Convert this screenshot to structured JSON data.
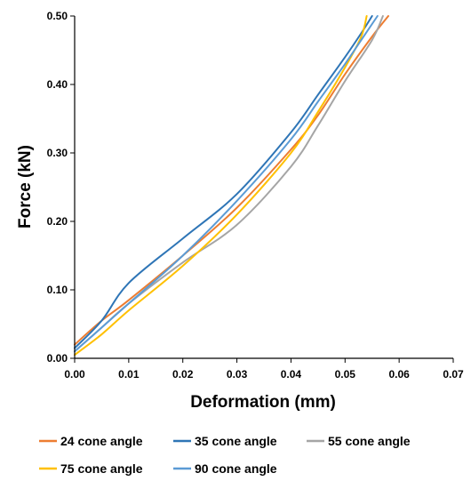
{
  "chart_data": {
    "type": "line",
    "xlabel": "Deformation (mm)",
    "ylabel": "Force (kN)",
    "xlim": [
      0,
      0.07
    ],
    "ylim": [
      0,
      0.5
    ],
    "x_ticks": [
      "0.00",
      "0.01",
      "0.02",
      "0.03",
      "0.04",
      "0.05",
      "0.06",
      "0.07"
    ],
    "y_ticks": [
      "0.00",
      "0.10",
      "0.20",
      "0.30",
      "0.40",
      "0.50"
    ],
    "grid": false,
    "legend_position": "bottom",
    "series": [
      {
        "name": "24 cone angle",
        "color": "#ED7D31",
        "points": [
          [
            0,
            0.02
          ],
          [
            0.005,
            0.055
          ],
          [
            0.01,
            0.085
          ],
          [
            0.02,
            0.15
          ],
          [
            0.03,
            0.22
          ],
          [
            0.04,
            0.305
          ],
          [
            0.045,
            0.355
          ],
          [
            0.05,
            0.415
          ],
          [
            0.055,
            0.47
          ],
          [
            0.058,
            0.5
          ]
        ]
      },
      {
        "name": "35 cone angle",
        "color": "#2E75B6",
        "points": [
          [
            0,
            0.015
          ],
          [
            0.005,
            0.055
          ],
          [
            0.01,
            0.11
          ],
          [
            0.02,
            0.175
          ],
          [
            0.03,
            0.24
          ],
          [
            0.04,
            0.33
          ],
          [
            0.045,
            0.385
          ],
          [
            0.05,
            0.44
          ],
          [
            0.053,
            0.475
          ],
          [
            0.055,
            0.5
          ]
        ]
      },
      {
        "name": "55 cone angle",
        "color": "#A5A5A5",
        "points": [
          [
            0,
            0.01
          ],
          [
            0.005,
            0.045
          ],
          [
            0.01,
            0.08
          ],
          [
            0.02,
            0.14
          ],
          [
            0.03,
            0.195
          ],
          [
            0.04,
            0.28
          ],
          [
            0.045,
            0.34
          ],
          [
            0.05,
            0.405
          ],
          [
            0.055,
            0.465
          ],
          [
            0.057,
            0.5
          ]
        ]
      },
      {
        "name": "75 cone angle",
        "color": "#FFC000",
        "points": [
          [
            0,
            0.005
          ],
          [
            0.005,
            0.035
          ],
          [
            0.01,
            0.07
          ],
          [
            0.02,
            0.135
          ],
          [
            0.03,
            0.21
          ],
          [
            0.04,
            0.3
          ],
          [
            0.045,
            0.36
          ],
          [
            0.05,
            0.425
          ],
          [
            0.053,
            0.47
          ],
          [
            0.054,
            0.5
          ]
        ]
      },
      {
        "name": "90 cone angle",
        "color": "#5B9BD5",
        "points": [
          [
            0,
            0.01
          ],
          [
            0.005,
            0.045
          ],
          [
            0.01,
            0.08
          ],
          [
            0.02,
            0.15
          ],
          [
            0.03,
            0.23
          ],
          [
            0.04,
            0.32
          ],
          [
            0.045,
            0.375
          ],
          [
            0.05,
            0.43
          ],
          [
            0.053,
            0.465
          ],
          [
            0.056,
            0.5
          ]
        ]
      }
    ]
  }
}
